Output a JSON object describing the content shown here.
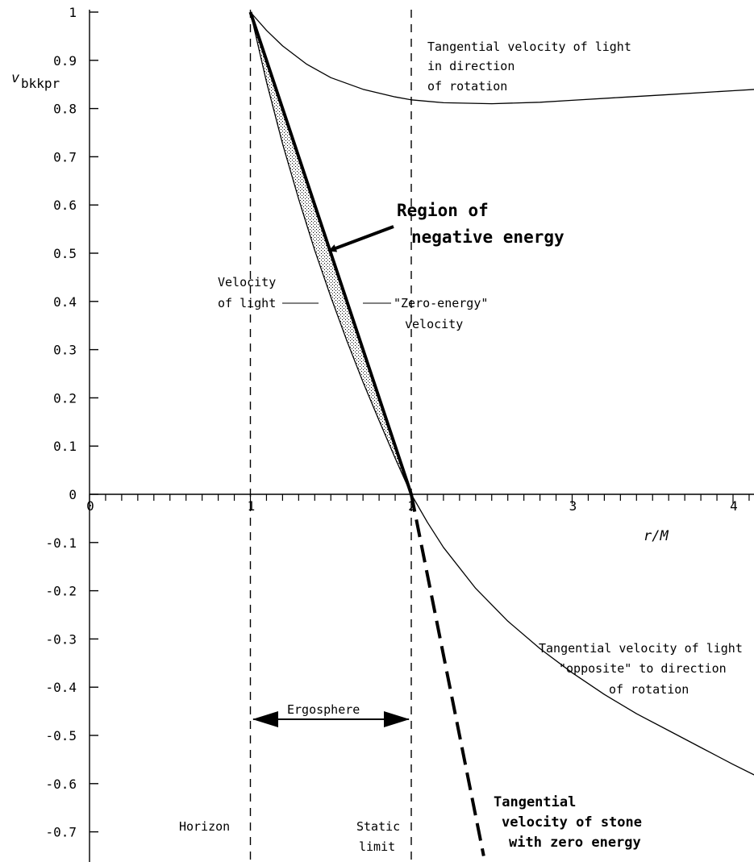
{
  "chart_data": {
    "type": "line",
    "xlabel": "r/M",
    "ylabel": "v",
    "ylabel_sub": "bkkpr",
    "xlim": [
      0,
      4
    ],
    "ylim": [
      -0.75,
      1
    ],
    "x_ticks": [
      {
        "value": 0,
        "label": "0"
      },
      {
        "value": 1,
        "label": "1"
      },
      {
        "value": 2,
        "label": "2"
      },
      {
        "value": 3,
        "label": "3"
      },
      {
        "value": 4,
        "label": "4"
      }
    ],
    "y_ticks": [
      {
        "value": 1,
        "label": "1"
      },
      {
        "value": 0.9,
        "label": "0.9"
      },
      {
        "value": 0.8,
        "label": "0.8"
      },
      {
        "value": 0.7,
        "label": "0.7"
      },
      {
        "value": 0.6,
        "label": "0.6"
      },
      {
        "value": 0.5,
        "label": "0.5"
      },
      {
        "value": 0.4,
        "label": "0.4"
      },
      {
        "value": 0.3,
        "label": "0.3"
      },
      {
        "value": 0.2,
        "label": "0.2"
      },
      {
        "value": 0.1,
        "label": "0.1"
      },
      {
        "value": 0,
        "label": "0"
      },
      {
        "value": -0.1,
        "label": "-0.1"
      },
      {
        "value": -0.2,
        "label": "-0.2"
      },
      {
        "value": -0.3,
        "label": "-0.3"
      },
      {
        "value": -0.4,
        "label": "-0.4"
      },
      {
        "value": -0.5,
        "label": "-0.5"
      },
      {
        "value": -0.6,
        "label": "-0.6"
      },
      {
        "value": -0.7,
        "label": "-0.7"
      }
    ],
    "series": [
      {
        "style": "thin",
        "x": [
          1.0,
          1.1,
          1.2,
          1.35,
          1.5,
          1.7,
          1.9,
          2.0,
          2.2,
          2.5,
          2.8,
          3.0,
          3.3,
          3.6,
          4.0,
          4.15
        ],
        "y": [
          1.0,
          0.962,
          0.93,
          0.892,
          0.864,
          0.84,
          0.824,
          0.818,
          0.812,
          0.81,
          0.813,
          0.817,
          0.823,
          0.829,
          0.837,
          0.84
        ]
      },
      {
        "style": "thick",
        "x": [
          1.0,
          2.0
        ],
        "y": [
          1.0,
          0.0
        ]
      },
      {
        "style": "thin",
        "x": [
          1.0,
          1.1,
          1.2,
          1.3,
          1.4,
          1.5,
          1.6,
          1.7,
          1.8,
          1.9,
          2.0,
          2.1,
          2.2,
          2.4,
          2.6,
          2.8,
          3.0,
          3.2,
          3.4,
          3.6,
          3.8,
          4.0,
          4.15
        ],
        "y": [
          1.0,
          0.855,
          0.727,
          0.612,
          0.506,
          0.409,
          0.318,
          0.233,
          0.153,
          0.075,
          0.0,
          -0.058,
          -0.11,
          -0.195,
          -0.263,
          -0.32,
          -0.37,
          -0.415,
          -0.455,
          -0.49,
          -0.525,
          -0.56,
          -0.585
        ]
      },
      {
        "style": "thick-dashed",
        "x": [
          2.0,
          2.45
        ],
        "y": [
          0.0,
          -0.75
        ]
      }
    ],
    "vertical_lines": [
      {
        "x": 1,
        "style": "dashed"
      },
      {
        "x": 2,
        "style": "dashed"
      }
    ],
    "shaded_region": {
      "fill": "stippled",
      "between_x": [
        1,
        2
      ]
    },
    "annotations": {
      "prograde_1": "Tangential velocity of light",
      "prograde_2": "in direction",
      "prograde_3": "of rotation",
      "region_1": "Region of",
      "region_2": "negative energy",
      "light_1": "Velocity",
      "light_2": "of light",
      "zero_1": "\"Zero-energy\"",
      "zero_2": "velocity",
      "retro_1": "Tangential velocity of light",
      "retro_2": "\"opposite\" to direction",
      "retro_3": "of rotation",
      "ergosphere": "Ergosphere",
      "horizon": "Horizon",
      "static_1": "Static",
      "static_2": "limit",
      "stone_1": "Tangential",
      "stone_2": "velocity of stone",
      "stone_3": "with zero energy"
    }
  }
}
